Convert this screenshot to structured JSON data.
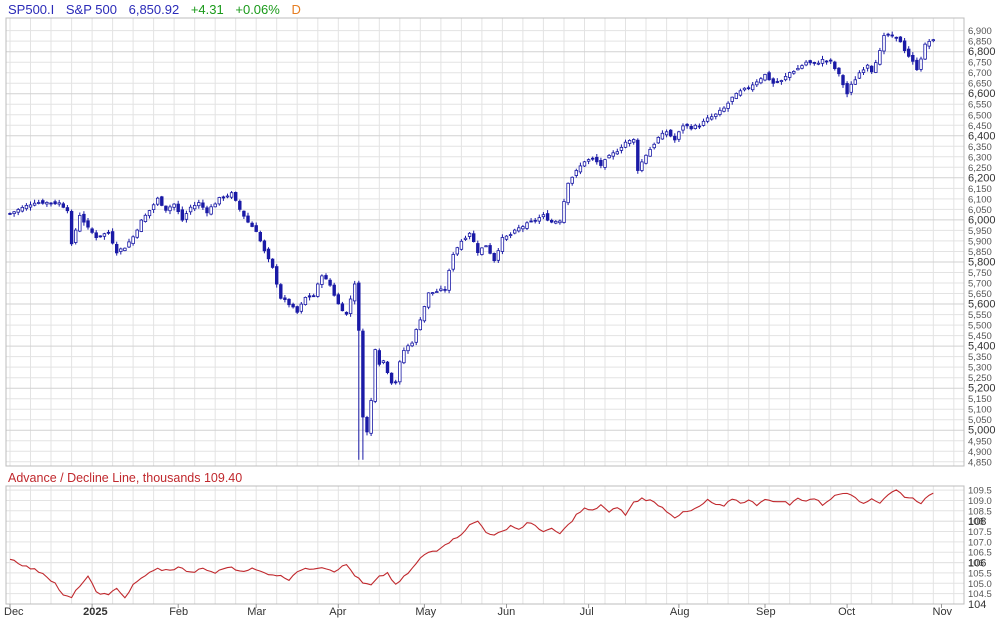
{
  "header": {
    "symbol": "SP500.I",
    "name": "S&P 500",
    "price": "6,850.92",
    "change": "+4.31",
    "change_pct": "+0.06%",
    "period": "D"
  },
  "ad_panel": {
    "label": "Advance / Decline Line, thousands 109.40"
  },
  "colors": {
    "candle": "#1a1aa6",
    "ad_line": "#c0282d",
    "grid": "#e3e3e3",
    "axis_text": "#555555",
    "header_blue": "#2b2bb8",
    "header_green": "#1a9a1a",
    "header_orange": "#e67e22"
  },
  "chart_data": [
    {
      "type": "candlestick",
      "title": "S&P 500",
      "ylim": [
        4830,
        6960
      ],
      "y_ticks": [
        4850,
        4900,
        4950,
        5000,
        5050,
        5100,
        5150,
        5200,
        5250,
        5300,
        5350,
        5400,
        5450,
        5500,
        5550,
        5600,
        5650,
        5700,
        5750,
        5800,
        5850,
        5900,
        5950,
        6000,
        6050,
        6100,
        6150,
        6200,
        6250,
        6300,
        6350,
        6400,
        6450,
        6500,
        6550,
        6600,
        6650,
        6700,
        6750,
        6800,
        6850,
        6900
      ],
      "y_tick_labels": [
        "4,850",
        "4,900",
        "4,950",
        "5,000",
        "5,050",
        "5,100",
        "5,150",
        "5,200",
        "5,250",
        "5,300",
        "5,350",
        "5,400",
        "5,450",
        "5,500",
        "5,550",
        "5,600",
        "5,650",
        "5,700",
        "5,750",
        "5,800",
        "5,850",
        "5,900",
        "5,950",
        "6,000",
        "6,050",
        "6,100",
        "6,150",
        "6,200",
        "6,250",
        "6,300",
        "6,350",
        "6,400",
        "6,450",
        "6,500",
        "6,550",
        "6,600",
        "6,650",
        "6,700",
        "6,750",
        "6,800",
        "6,850",
        "6,900"
      ],
      "y_major_ticks": [
        5000,
        5200,
        5400,
        5600,
        5800,
        6000,
        6200,
        6400,
        6600,
        6800
      ],
      "x_range": [
        0,
        232
      ],
      "x_ticks": [
        {
          "x": 0,
          "label": "Dec"
        },
        {
          "x": 20,
          "label": "2025",
          "bold": true
        },
        {
          "x": 41,
          "label": "Feb"
        },
        {
          "x": 60,
          "label": "Mar"
        },
        {
          "x": 80,
          "label": "Apr"
        },
        {
          "x": 101,
          "label": "May"
        },
        {
          "x": 121,
          "label": "Jun"
        },
        {
          "x": 141,
          "label": "Jul"
        },
        {
          "x": 163,
          "label": "Aug"
        },
        {
          "x": 184,
          "label": "Sep"
        },
        {
          "x": 204,
          "label": "Oct"
        },
        {
          "x": 227,
          "label": "Nov"
        }
      ],
      "close_anchors": [
        [
          0,
          6030
        ],
        [
          6,
          6085
        ],
        [
          12,
          6080
        ],
        [
          14,
          6050
        ],
        [
          15,
          5880
        ],
        [
          17,
          6025
        ],
        [
          19,
          5960
        ],
        [
          21,
          5920
        ],
        [
          24,
          5940
        ],
        [
          26,
          5850
        ],
        [
          28,
          5870
        ],
        [
          30,
          5920
        ],
        [
          32,
          5995
        ],
        [
          34,
          6045
        ],
        [
          36,
          6100
        ],
        [
          38,
          6050
        ],
        [
          40,
          6075
        ],
        [
          42,
          6000
        ],
        [
          44,
          6060
        ],
        [
          46,
          6080
        ],
        [
          48,
          6040
        ],
        [
          51,
          6100
        ],
        [
          54,
          6125
        ],
        [
          56,
          6050
        ],
        [
          58,
          5990
        ],
        [
          60,
          5950
        ],
        [
          62,
          5850
        ],
        [
          64,
          5770
        ],
        [
          66,
          5630
        ],
        [
          68,
          5600
        ],
        [
          70,
          5560
        ],
        [
          72,
          5630
        ],
        [
          74,
          5640
        ],
        [
          76,
          5740
        ],
        [
          78,
          5690
        ],
        [
          80,
          5600
        ],
        [
          82,
          5550
        ],
        [
          84,
          5700
        ],
        [
          85,
          5470
        ],
        [
          86,
          5070
        ],
        [
          87,
          4990
        ],
        [
          88,
          5140
        ],
        [
          89,
          5390
        ],
        [
          90,
          5320
        ],
        [
          91,
          5330
        ],
        [
          92,
          5280
        ],
        [
          93,
          5230
        ],
        [
          94,
          5230
        ],
        [
          95,
          5320
        ],
        [
          96,
          5380
        ],
        [
          98,
          5420
        ],
        [
          100,
          5530
        ],
        [
          102,
          5650
        ],
        [
          104,
          5660
        ],
        [
          106,
          5670
        ],
        [
          108,
          5840
        ],
        [
          110,
          5900
        ],
        [
          112,
          5940
        ],
        [
          114,
          5850
        ],
        [
          116,
          5880
        ],
        [
          118,
          5810
        ],
        [
          120,
          5910
        ],
        [
          122,
          5930
        ],
        [
          124,
          5960
        ],
        [
          126,
          5980
        ],
        [
          128,
          6000
        ],
        [
          130,
          6020
        ],
        [
          132,
          5990
        ],
        [
          134,
          6000
        ],
        [
          136,
          6180
        ],
        [
          138,
          6230
        ],
        [
          140,
          6280
        ],
        [
          142,
          6290
        ],
        [
          144,
          6260
        ],
        [
          146,
          6300
        ],
        [
          148,
          6330
        ],
        [
          150,
          6370
        ],
        [
          152,
          6380
        ],
        [
          153,
          6240
        ],
        [
          155,
          6310
        ],
        [
          158,
          6390
        ],
        [
          160,
          6420
        ],
        [
          162,
          6380
        ],
        [
          164,
          6450
        ],
        [
          166,
          6440
        ],
        [
          168,
          6450
        ],
        [
          170,
          6480
        ],
        [
          172,
          6500
        ],
        [
          174,
          6530
        ],
        [
          176,
          6580
        ],
        [
          178,
          6610
        ],
        [
          180,
          6630
        ],
        [
          182,
          6660
        ],
        [
          184,
          6690
        ],
        [
          186,
          6650
        ],
        [
          188,
          6660
        ],
        [
          190,
          6700
        ],
        [
          192,
          6720
        ],
        [
          194,
          6750
        ],
        [
          196,
          6740
        ],
        [
          198,
          6760
        ],
        [
          200,
          6750
        ],
        [
          202,
          6690
        ],
        [
          204,
          6600
        ],
        [
          205,
          6640
        ],
        [
          207,
          6700
        ],
        [
          209,
          6740
        ],
        [
          210,
          6710
        ],
        [
          212,
          6800
        ],
        [
          213,
          6870
        ],
        [
          214,
          6880
        ],
        [
          216,
          6860
        ],
        [
          217,
          6850
        ],
        [
          218,
          6810
        ],
        [
          219,
          6780
        ],
        [
          220,
          6750
        ],
        [
          221,
          6720
        ],
        [
          222,
          6770
        ],
        [
          223,
          6830
        ],
        [
          224,
          6850
        ],
        [
          225,
          6851
        ]
      ],
      "lows": [
        {
          "x": 85,
          "low": 4860
        },
        {
          "x": 86,
          "low": 4860
        }
      ]
    },
    {
      "type": "line",
      "title": "Advance / Decline Line, thousands",
      "series": [
        {
          "name": "Advance / Decline Line",
          "last": 109.4
        }
      ],
      "ylim": [
        104.0,
        109.7
      ],
      "y_ticks": [
        104.5,
        105.0,
        105.5,
        106.0,
        106.5,
        107.0,
        107.5,
        108.0,
        108.5,
        109.0,
        109.5
      ],
      "y_tick_labels": [
        "104.5",
        "105.0",
        "105.5",
        "106",
        "106.5",
        "107.0",
        "107.5",
        "108",
        "108.5",
        "109.0",
        "109.5"
      ],
      "y_major_ticks": [
        104,
        106,
        108
      ],
      "y_major_labels": [
        "104",
        "106",
        "108"
      ],
      "x_range": [
        0,
        232
      ],
      "anchors": [
        [
          0,
          106.2
        ],
        [
          4,
          105.8
        ],
        [
          8,
          105.5
        ],
        [
          11,
          105.0
        ],
        [
          13,
          104.4
        ],
        [
          15,
          104.3
        ],
        [
          17,
          104.9
        ],
        [
          19,
          105.3
        ],
        [
          21,
          104.6
        ],
        [
          24,
          104.4
        ],
        [
          26,
          104.8
        ],
        [
          28,
          104.3
        ],
        [
          30,
          104.9
        ],
        [
          33,
          105.4
        ],
        [
          36,
          105.7
        ],
        [
          39,
          105.6
        ],
        [
          41,
          105.8
        ],
        [
          44,
          105.5
        ],
        [
          47,
          105.7
        ],
        [
          50,
          105.5
        ],
        [
          53,
          105.8
        ],
        [
          56,
          105.6
        ],
        [
          59,
          105.7
        ],
        [
          62,
          105.5
        ],
        [
          65,
          105.4
        ],
        [
          68,
          105.2
        ],
        [
          70,
          105.6
        ],
        [
          73,
          105.7
        ],
        [
          76,
          105.8
        ],
        [
          79,
          105.6
        ],
        [
          82,
          105.9
        ],
        [
          84,
          105.4
        ],
        [
          86,
          105.0
        ],
        [
          88,
          104.9
        ],
        [
          90,
          105.3
        ],
        [
          92,
          105.5
        ],
        [
          94,
          104.9
        ],
        [
          96,
          105.3
        ],
        [
          98,
          105.7
        ],
        [
          100,
          106.2
        ],
        [
          102,
          106.5
        ],
        [
          104,
          106.6
        ],
        [
          106,
          106.9
        ],
        [
          108,
          107.1
        ],
        [
          110,
          107.4
        ],
        [
          112,
          107.8
        ],
        [
          114,
          108.0
        ],
        [
          116,
          107.5
        ],
        [
          118,
          107.3
        ],
        [
          120,
          107.5
        ],
        [
          122,
          107.8
        ],
        [
          124,
          107.6
        ],
        [
          126,
          107.9
        ],
        [
          128,
          107.8
        ],
        [
          130,
          107.5
        ],
        [
          132,
          107.6
        ],
        [
          134,
          107.4
        ],
        [
          136,
          107.8
        ],
        [
          138,
          108.3
        ],
        [
          140,
          108.6
        ],
        [
          142,
          108.5
        ],
        [
          144,
          108.8
        ],
        [
          146,
          108.4
        ],
        [
          148,
          108.7
        ],
        [
          150,
          108.3
        ],
        [
          152,
          108.9
        ],
        [
          154,
          109.1
        ],
        [
          156,
          109.0
        ],
        [
          158,
          108.8
        ],
        [
          160,
          108.5
        ],
        [
          162,
          108.2
        ],
        [
          164,
          108.4
        ],
        [
          166,
          108.5
        ],
        [
          168,
          108.7
        ],
        [
          170,
          109.0
        ],
        [
          172,
          108.8
        ],
        [
          174,
          108.7
        ],
        [
          176,
          109.1
        ],
        [
          178,
          108.9
        ],
        [
          180,
          109.0
        ],
        [
          182,
          108.8
        ],
        [
          184,
          109.1
        ],
        [
          186,
          108.9
        ],
        [
          188,
          109.0
        ],
        [
          190,
          108.8
        ],
        [
          192,
          109.1
        ],
        [
          194,
          109.0
        ],
        [
          196,
          109.1
        ],
        [
          198,
          108.8
        ],
        [
          200,
          109.1
        ],
        [
          202,
          109.3
        ],
        [
          204,
          109.4
        ],
        [
          206,
          109.2
        ],
        [
          208,
          108.8
        ],
        [
          210,
          109.1
        ],
        [
          212,
          108.9
        ],
        [
          214,
          109.3
        ],
        [
          216,
          109.5
        ],
        [
          218,
          109.2
        ],
        [
          220,
          109.1
        ],
        [
          222,
          108.9
        ],
        [
          224,
          109.2
        ],
        [
          225,
          109.4
        ]
      ]
    }
  ]
}
